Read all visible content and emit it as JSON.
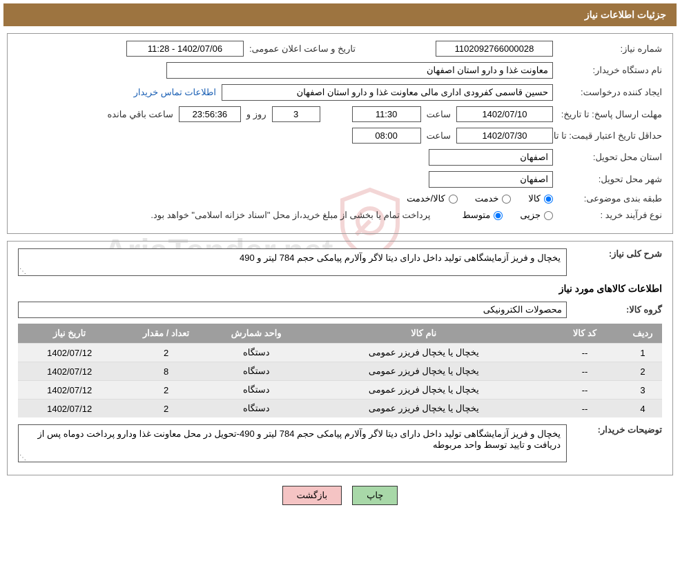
{
  "header": {
    "title": "جزئیات اطلاعات نیاز"
  },
  "form": {
    "need_number_label": "شماره نیاز:",
    "need_number": "1102092766000028",
    "announce_label": "تاریخ و ساعت اعلان عمومی:",
    "announce_date": "1402/07/06 - 11:28",
    "buyer_org_label": "نام دستگاه خریدار:",
    "buyer_org": "معاونت غذا و دارو استان اصفهان",
    "requester_label": "ایجاد کننده درخواست:",
    "requester": "حسین قاسمی کفرودی اداری مالی معاونت غذا و دارو استان اصفهان",
    "contact_link": "اطلاعات تماس خریدار",
    "deadline_label": "مهلت ارسال پاسخ: تا تاریخ:",
    "deadline_date": "1402/07/10",
    "time_label": "ساعت",
    "deadline_time": "11:30",
    "days_count": "3",
    "days_label": "روز و",
    "countdown": "23:56:36",
    "remaining_label": "ساعت باقي مانده",
    "validity_label": "حداقل تاریخ اعتبار قیمت: تا تاریخ:",
    "validity_date": "1402/07/30",
    "validity_time": "08:00",
    "province_label": "استان محل تحویل:",
    "province": "اصفهان",
    "city_label": "شهر محل تحویل:",
    "city": "اصفهان",
    "category_label": "طبقه بندی موضوعی:",
    "cat_goods": "کالا",
    "cat_service": "خدمت",
    "cat_goods_service": "کالا/خدمت",
    "purchase_type_label": "نوع فرآیند خرید :",
    "pt_partial": "جزیی",
    "pt_medium": "متوسط",
    "purchase_note": "پرداخت تمام یا بخشی از مبلغ خرید،از محل \"اسناد خزانه اسلامی\" خواهد بود."
  },
  "details": {
    "overview_label": "شرح کلی نیاز:",
    "overview_text": "یخچال و فریز  آزمایشگاهی تولید داخل دارای دیتا لاگر وآلارم پیامکی حجم 784 لیتر و 490",
    "goods_info_title": "اطلاعات کالاهای مورد نیاز",
    "group_label": "گروه کالا:",
    "group_value": "محصولات الکترونیکی",
    "buyer_notes_label": "توضیحات خریدار:",
    "buyer_notes_text": "یخچال و فریز  آزمایشگاهی تولید داخل دارای دیتا لاگر وآلارم پیامکی حجم 784 لیتر و 490-تحویل در محل معاونت غذا ودارو پرداخت دوماه پس از دریافت و تایید توسط واحد مربوطه"
  },
  "table": {
    "columns": [
      "ردیف",
      "کد کالا",
      "نام کالا",
      "واحد شمارش",
      "تعداد / مقدار",
      "تاریخ نیاز"
    ],
    "col_widths": [
      "6%",
      "12%",
      "38%",
      "14%",
      "14%",
      "16%"
    ],
    "rows": [
      [
        "1",
        "--",
        "یخچال یا یخچال فریزر عمومی",
        "دستگاه",
        "2",
        "1402/07/12"
      ],
      [
        "2",
        "--",
        "یخچال یا یخچال فریزر عمومی",
        "دستگاه",
        "8",
        "1402/07/12"
      ],
      [
        "3",
        "--",
        "یخچال یا یخچال فریزر عمومی",
        "دستگاه",
        "2",
        "1402/07/12"
      ],
      [
        "4",
        "--",
        "یخچال یا یخچال فریزر عمومی",
        "دستگاه",
        "2",
        "1402/07/12"
      ]
    ]
  },
  "buttons": {
    "print": "چاپ",
    "back": "بازگشت"
  },
  "watermark": {
    "text": "AriaTender.net"
  }
}
